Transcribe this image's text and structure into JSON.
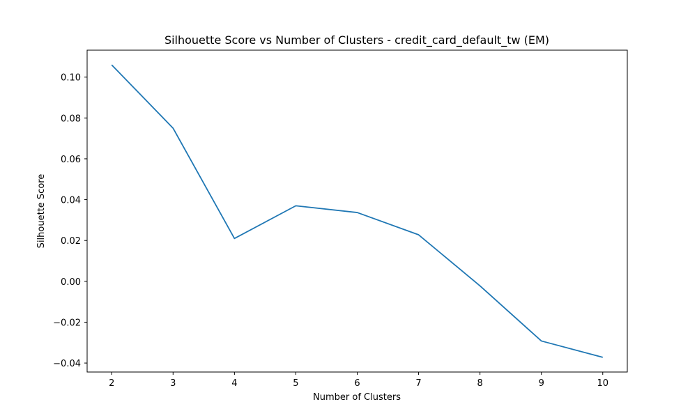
{
  "chart_data": {
    "type": "line",
    "title": "Silhouette Score vs Number of Clusters - credit_card_default_tw (EM)",
    "xlabel": "Number of Clusters",
    "ylabel": "Silhouette Score",
    "x": [
      2,
      3,
      4,
      5,
      6,
      7,
      8,
      9,
      10
    ],
    "series": [
      {
        "values": [
          0.106,
          0.075,
          0.021,
          0.037,
          0.0337,
          0.0228,
          -0.0022,
          -0.0292,
          -0.0372
        ],
        "color": "#1f77b4"
      }
    ],
    "xticks": [
      2,
      3,
      4,
      5,
      6,
      7,
      8,
      9,
      10
    ],
    "yticks": [
      -0.04,
      -0.02,
      0.0,
      0.02,
      0.04,
      0.06,
      0.08,
      0.1
    ],
    "ytick_labels": [
      "−0.04",
      "−0.02",
      "0.00",
      "0.02",
      "0.04",
      "0.06",
      "0.08",
      "0.10"
    ],
    "xlim": [
      1.6,
      10.4
    ],
    "ylim": [
      -0.0444,
      0.1132
    ],
    "grid": false,
    "legend": false
  }
}
